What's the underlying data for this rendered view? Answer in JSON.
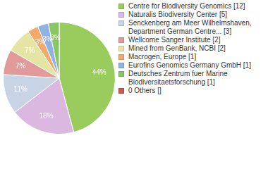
{
  "chart_data": {
    "type": "pie",
    "categories": [
      "Centre for Biodiversity Genomics [12]",
      "Naturalis Biodiversity Center [5]",
      "Senckenberg am Meer Wilhelmshaven, Department German Centre... [3]",
      "Wellcome Sanger Institute [2]",
      "Mined from GenBank, NCBI [2]",
      "Macrogen, Europe [1]",
      "Eurofins Genomics Germany GmbH [1]",
      "Deutsches Zentrum fuer Marine Biodiversitaetsforschung [1]",
      "0 Others []"
    ],
    "values": [
      44,
      18,
      11,
      7,
      7,
      3,
      3,
      3,
      0
    ],
    "value_labels": [
      "44%",
      "18%",
      "11%",
      "7%",
      "7%",
      "3%",
      "3%",
      "3%",
      null
    ],
    "colors": [
      "#99cc5c",
      "#dab8e0",
      "#c8d4e6",
      "#e09a9a",
      "#e4e4a4",
      "#f2aa6a",
      "#90b2e2",
      "#8cc468",
      "#cc5a48"
    ],
    "data_labels": true,
    "legend": "right"
  }
}
